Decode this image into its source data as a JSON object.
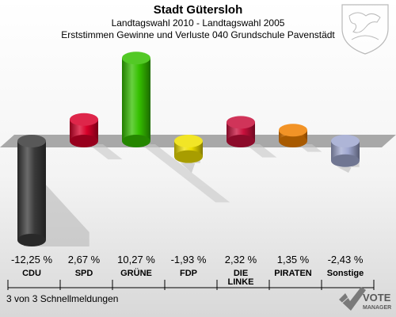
{
  "header": {
    "title": "Stadt Gütersloh",
    "subtitle1": "Landtagswahl 2010 - Landtagswahl 2005",
    "subtitle2": "Erststimmen Gewinne und Verluste 040 Grundschule Pavenstädt"
  },
  "footer": {
    "status": "3 von 3 Schnellmeldungen",
    "brand_line1": "VOTE",
    "brand_line2": "MANAGER"
  },
  "chart_data": {
    "type": "bar",
    "title": "Stadt Gütersloh",
    "subtitle": "Erststimmen Gewinne und Verluste 040 Grundschule Pavenstädt",
    "categories": [
      "CDU",
      "SPD",
      "GRÜNE",
      "FDP",
      "DIE LINKE",
      "PIRATEN",
      "Sonstige"
    ],
    "category_lines": [
      [
        "CDU"
      ],
      [
        "SPD"
      ],
      [
        "GRÜNE"
      ],
      [
        "FDP"
      ],
      [
        "DIE",
        "LINKE"
      ],
      [
        "PIRATEN"
      ],
      [
        "Sonstige"
      ]
    ],
    "values": [
      -12.25,
      2.67,
      10.27,
      -1.93,
      2.32,
      1.35,
      -2.43
    ],
    "value_labels": [
      "-12,25 %",
      "2,67 %",
      "10,27 %",
      "-1,93 %",
      "2,32 %",
      "1,35 %",
      "-2,43 %"
    ],
    "colors": [
      "#3a3a3a",
      "#d8002a",
      "#35c000",
      "#f0e000",
      "#c8103c",
      "#f08000",
      "#a0a8d0"
    ],
    "ylim": [
      -13,
      11
    ],
    "baseline": 0,
    "grid": false,
    "legend": "none"
  }
}
